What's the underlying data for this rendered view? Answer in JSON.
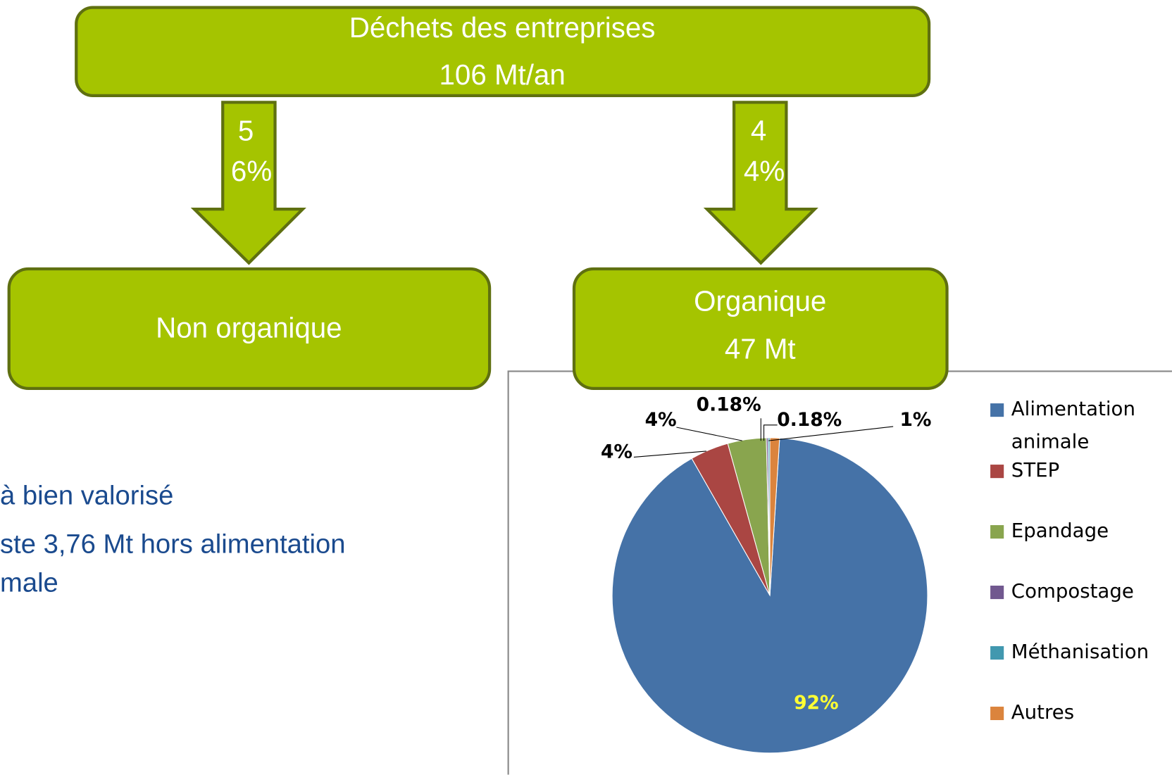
{
  "diagram": {
    "top": {
      "title": "Déchets des entreprises",
      "subtitle": "106 Mt/an"
    },
    "arrows": [
      {
        "label": "56%"
      },
      {
        "label": "44%"
      }
    ],
    "left": {
      "title": "Non organique"
    },
    "right": {
      "title": "Organique",
      "subtitle": "47 Mt"
    }
  },
  "bullets": [
    "à bien valorisé",
    "ste 3,76 Mt hors alimentation",
    "male"
  ],
  "chart_data": {
    "type": "pie",
    "categories": [
      "Alimentation animale",
      "STEP",
      "Epandage",
      "Compostage",
      "Méthanisation",
      "Autres"
    ],
    "values": [
      92,
      4,
      4,
      0.18,
      0.18,
      1
    ],
    "value_labels": [
      "92%",
      "4%",
      "4%",
      "0.18%",
      "0.18%",
      "1%"
    ],
    "colors": [
      "#4572a7",
      "#aa4643",
      "#89a54e",
      "#71588f",
      "#4198af",
      "#db843d"
    ],
    "legend": "right"
  }
}
